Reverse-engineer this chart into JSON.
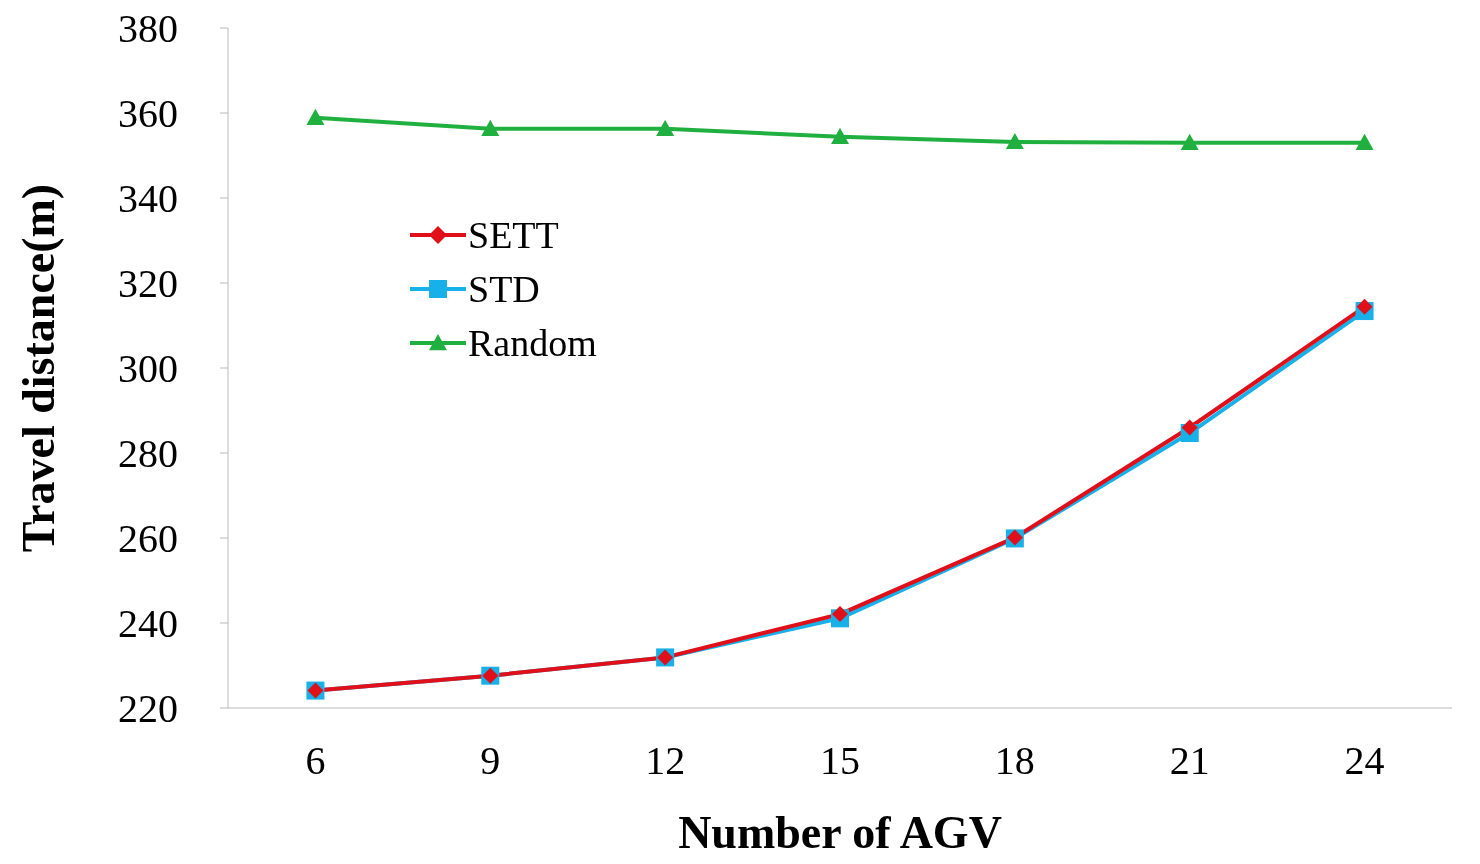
{
  "chart_data": {
    "type": "line",
    "xlabel": "Number of AGV",
    "ylabel": "Travel distance(m)",
    "categories": [
      "6",
      "9",
      "12",
      "15",
      "18",
      "21",
      "24"
    ],
    "series": [
      {
        "name": "SETT",
        "color": "#e0101a",
        "marker": "diamond",
        "values": [
          224.1,
          227.6,
          231.9,
          242.1,
          260.1,
          286,
          314.4
        ]
      },
      {
        "name": "STD",
        "color": "#17b0e8",
        "marker": "square",
        "values": [
          224.1,
          227.6,
          231.9,
          241.1,
          259.9,
          284.7,
          313.4
        ]
      },
      {
        "name": "Random",
        "color": "#20b040",
        "marker": "triangle",
        "values": [
          358.9,
          356.3,
          356.3,
          354.4,
          353.2,
          353,
          353
        ]
      }
    ],
    "ylim": [
      220,
      380
    ],
    "yticks": [
      220,
      240,
      260,
      280,
      300,
      320,
      340,
      360,
      380
    ],
    "grid": false,
    "legend": "top left"
  }
}
